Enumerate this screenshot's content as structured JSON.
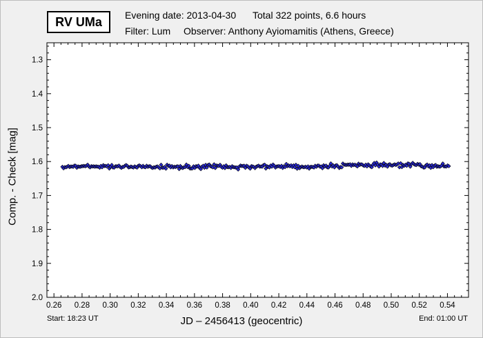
{
  "header": {
    "star_name": "RV UMa",
    "evening_date": "Evening date: 2013-04-30",
    "total": "Total 322 points, 6.6 hours",
    "filter": "Filter: Lum",
    "observer": "Observer: Anthony Ayiomamitis (Athens, Greece)"
  },
  "footer": {
    "start": "Start: 18:23 UT",
    "end": "End: 01:00 UT"
  },
  "chart_data": {
    "type": "scatter",
    "xlabel": "JD – 2456413  (geocentric)",
    "ylabel": "Comp. - Check [mag]",
    "xlim": [
      0.255,
      0.555
    ],
    "ylim": [
      1.25,
      2.0
    ],
    "y_inverted": true,
    "xticks": [
      "0.26",
      "0.28",
      "0.30",
      "0.32",
      "0.34",
      "0.36",
      "0.38",
      "0.40",
      "0.42",
      "0.44",
      "0.46",
      "0.48",
      "0.50",
      "0.52",
      "0.54"
    ],
    "yticks": [
      "1.3",
      "1.4",
      "1.5",
      "1.6",
      "1.7",
      "1.8",
      "1.9",
      "2.0"
    ],
    "grid": false,
    "point_color": "#2b2bd6",
    "series": [
      {
        "x_start": 0.266,
        "x_end": 0.541,
        "count": 322,
        "points": [
          [
            0.266,
            1.615
          ],
          [
            0.275,
            1.614
          ],
          [
            0.285,
            1.615
          ],
          [
            0.295,
            1.613
          ],
          [
            0.305,
            1.615
          ],
          [
            0.315,
            1.616
          ],
          [
            0.325,
            1.614
          ],
          [
            0.335,
            1.615
          ],
          [
            0.345,
            1.616
          ],
          [
            0.355,
            1.615
          ],
          [
            0.365,
            1.616
          ],
          [
            0.375,
            1.615
          ],
          [
            0.385,
            1.616
          ],
          [
            0.395,
            1.615
          ],
          [
            0.405,
            1.616
          ],
          [
            0.415,
            1.614
          ],
          [
            0.425,
            1.613
          ],
          [
            0.435,
            1.614
          ],
          [
            0.445,
            1.615
          ],
          [
            0.455,
            1.613
          ],
          [
            0.465,
            1.612
          ],
          [
            0.475,
            1.611
          ],
          [
            0.485,
            1.612
          ],
          [
            0.495,
            1.611
          ],
          [
            0.505,
            1.61
          ],
          [
            0.515,
            1.61
          ],
          [
            0.525,
            1.612
          ],
          [
            0.535,
            1.613
          ],
          [
            0.541,
            1.612
          ]
        ]
      }
    ]
  }
}
